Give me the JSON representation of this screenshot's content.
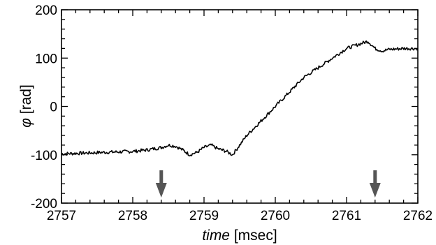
{
  "chart_data": {
    "type": "line",
    "xlabel_italic": "time",
    "xlabel_unit": "[msec]",
    "ylabel_symbol": "φ",
    "ylabel_unit": "[rad]",
    "xlim": [
      2757,
      2762
    ],
    "ylim": [
      -200,
      200
    ],
    "xticks": [
      "2757",
      "2758",
      "2759",
      "2760",
      "2761",
      "2762"
    ],
    "yticks": [
      "200",
      "100",
      "0",
      "-100",
      "-200"
    ],
    "grid": false,
    "series": [
      {
        "x": [
          2757.0,
          2757.2,
          2757.4,
          2757.6,
          2757.8,
          2758.0,
          2758.2,
          2758.4,
          2758.5,
          2758.6,
          2758.7,
          2758.8,
          2758.9,
          2759.0,
          2759.1,
          2759.2,
          2759.3,
          2759.4,
          2759.5,
          2759.6,
          2759.7,
          2759.8,
          2759.9,
          2760.0,
          2760.1,
          2760.2,
          2760.3,
          2760.4,
          2760.5,
          2760.6,
          2760.7,
          2760.8,
          2760.9,
          2761.0,
          2761.1,
          2761.2,
          2761.3,
          2761.4,
          2761.5,
          2761.6,
          2761.8,
          2762.0
        ],
        "y": [
          -98,
          -97,
          -96,
          -95,
          -94,
          -93,
          -90,
          -85,
          -80,
          -82,
          -90,
          -100,
          -95,
          -85,
          -80,
          -88,
          -92,
          -100,
          -80,
          -60,
          -45,
          -30,
          -15,
          0,
          15,
          30,
          45,
          60,
          70,
          80,
          90,
          100,
          110,
          120,
          125,
          130,
          135,
          120,
          115,
          118,
          120,
          120
        ]
      }
    ],
    "annotations": [
      {
        "type": "arrow-down",
        "x": 2758.4
      },
      {
        "type": "arrow-down",
        "x": 2761.4
      }
    ]
  }
}
